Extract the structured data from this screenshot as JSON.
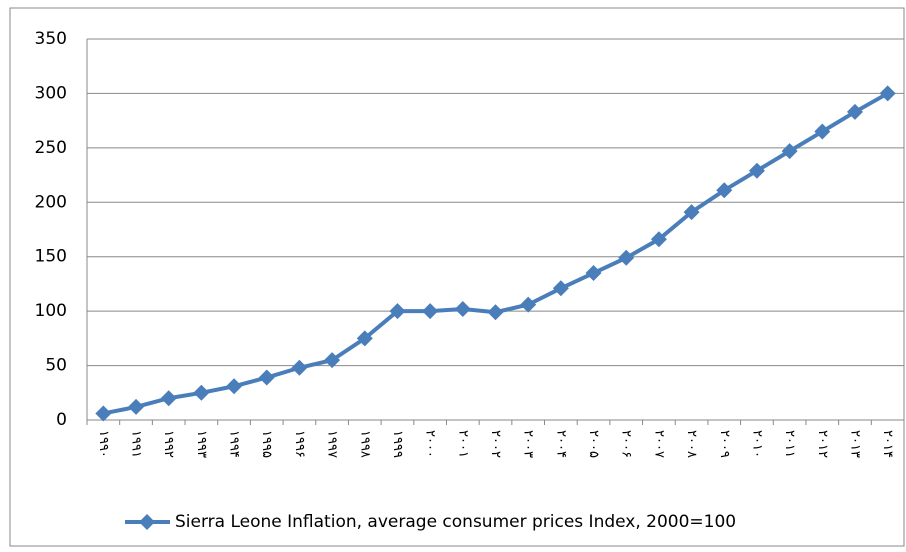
{
  "chart_data": {
    "type": "line",
    "categories": [
      "۱۹۹۰",
      "۱۹۹۱",
      "۱۹۹۲",
      "۱۹۹۳",
      "۱۹۹۴",
      "۱۹۹۵",
      "۱۹۹۶",
      "۱۹۹۷",
      "۱۹۹۸",
      "۱۹۹۹",
      "۲۰۰۰",
      "۲۰۰۱",
      "۲۰۰۲",
      "۲۰۰۳",
      "۲۰۰۴",
      "۲۰۰۵",
      "۲۰۰۶",
      "۲۰۰۷",
      "۲۰۰۸",
      "۲۰۰۹",
      "۲۰۱۰",
      "۲۰۱۱",
      "۲۰۱۲",
      "۲۰۱۳",
      "۲۰۱۴"
    ],
    "series": [
      {
        "name": "Sierra Leone Inflation, average consumer prices Index, 2000=100",
        "color": "#4a7ebb",
        "values": [
          6,
          12,
          20,
          25,
          31,
          39,
          48,
          55,
          75,
          100,
          100,
          102,
          99,
          106,
          121,
          135,
          149,
          166,
          191,
          211,
          229,
          247,
          265,
          283,
          300
        ]
      }
    ],
    "ylim": [
      0,
      350
    ],
    "yticks": [
      0,
      50,
      100,
      150,
      200,
      250,
      300,
      350
    ],
    "grid": true,
    "legend": "bottom"
  }
}
